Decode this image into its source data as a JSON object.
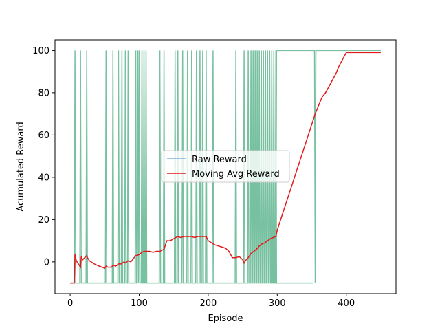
{
  "chart_data": {
    "type": "line",
    "xlabel": "Episode",
    "ylabel": "Acumulated Reward",
    "xlim": [
      -22,
      472
    ],
    "ylim": [
      -15,
      105
    ],
    "xticks": [
      0,
      100,
      200,
      300,
      400
    ],
    "yticks": [
      0,
      20,
      40,
      60,
      80,
      100
    ],
    "grid": false,
    "legend_position": "center",
    "raw_spikes": [
      7,
      15,
      24,
      52,
      62,
      70,
      75,
      80,
      84,
      95,
      98,
      100,
      104,
      107,
      110,
      130,
      136,
      152,
      156,
      163,
      170,
      176,
      183,
      188,
      192,
      197,
      207,
      240,
      252,
      258,
      262,
      265,
      268,
      271,
      274,
      277,
      280,
      283,
      286,
      289,
      292,
      295,
      298
    ],
    "raw_tail": {
      "start": 298,
      "end": 450,
      "value": 100,
      "dip_at": 355,
      "dip_value": -10
    },
    "series": [
      {
        "name": "Raw Reward",
        "color": "#5fb58f",
        "legend_color": "#77b5e6",
        "base_value": -10,
        "spike_value": 100
      },
      {
        "name": "Moving Avg Reward",
        "color": "#e31a1c",
        "x": [
          0,
          6,
          7,
          9,
          15,
          16,
          18,
          24,
          25,
          28,
          35,
          42,
          50,
          52,
          55,
          60,
          62,
          66,
          70,
          74,
          78,
          80,
          84,
          88,
          95,
          97,
          100,
          104,
          107,
          110,
          115,
          120,
          125,
          130,
          136,
          140,
          145,
          150,
          156,
          160,
          165,
          170,
          176,
          180,
          185,
          190,
          197,
          200,
          205,
          210,
          215,
          220,
          225,
          230,
          235,
          240,
          245,
          250,
          252,
          255,
          258,
          262,
          266,
          270,
          274,
          278,
          282,
          286,
          290,
          294,
          298,
          300,
          305,
          310,
          320,
          330,
          340,
          350,
          355,
          360,
          365,
          370,
          375,
          380,
          385,
          390,
          395,
          400,
          420,
          450
        ],
        "y": [
          -10,
          -10,
          3.5,
          0.5,
          -2.5,
          2.5,
          1,
          3,
          2,
          0.5,
          -1,
          -2,
          -3,
          -2,
          -2.5,
          -2.5,
          -1.5,
          -2,
          -1,
          -1,
          0,
          -0.5,
          0.5,
          0,
          3,
          3,
          3.5,
          4.5,
          5,
          5,
          5,
          4.5,
          5,
          5,
          6,
          10,
          10,
          11,
          12,
          11.5,
          12,
          12,
          12,
          11.5,
          12,
          12,
          12,
          10,
          9,
          8,
          7.5,
          7,
          6.5,
          5,
          2,
          2,
          2.5,
          1,
          -0.5,
          1,
          2,
          4,
          5,
          6,
          7.5,
          8.5,
          9,
          10,
          11,
          11.5,
          12,
          15,
          20,
          25,
          35,
          45,
          55,
          65,
          70,
          74,
          78,
          80,
          83,
          86,
          89,
          93,
          96,
          99,
          99,
          99
        ]
      }
    ]
  }
}
